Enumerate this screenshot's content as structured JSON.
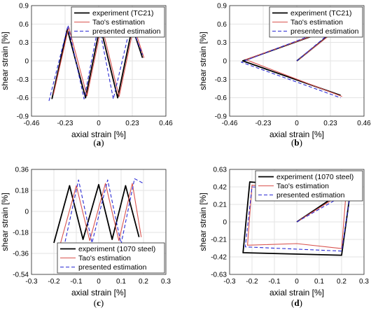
{
  "chart_data": [
    {
      "type": "line",
      "caption": "a",
      "xlabel": "axial strain [%]",
      "ylabel": "shear strain [%]",
      "xlim": [
        -0.46,
        0.46
      ],
      "ylim": [
        -0.9,
        0.9
      ],
      "xticks": [
        "-0.46",
        "-0.23",
        "0",
        "0.23",
        "0.46"
      ],
      "yticks": [
        "-0.9",
        "-0.6",
        "-0.3",
        "0",
        "0.3",
        "0.6",
        "0.9"
      ],
      "grid": true,
      "legend_position": "top-right",
      "series": [
        {
          "name": "experiment (TC21)",
          "color": "#000000",
          "style": "solid",
          "x": [
            -0.32,
            -0.215,
            -0.09,
            0.01,
            0.13,
            0.23,
            0.3
          ],
          "y": [
            -0.62,
            0.52,
            -0.6,
            0.57,
            -0.6,
            0.55,
            0.05
          ]
        },
        {
          "name": "Tao's estimation",
          "color": "#d9534f",
          "style": "solid",
          "x": [
            -0.31,
            -0.205,
            -0.08,
            0.02,
            0.14,
            0.24,
            0.31
          ],
          "y": [
            -0.55,
            0.55,
            -0.57,
            0.58,
            -0.58,
            0.56,
            0.05
          ]
        },
        {
          "name": "presented estimation",
          "color": "#2a2ad4",
          "style": "dashed",
          "x": [
            -0.34,
            -0.21,
            -0.1,
            0.0,
            0.1,
            0.22,
            0.3
          ],
          "y": [
            -0.65,
            0.58,
            -0.62,
            0.6,
            -0.62,
            0.6,
            0.1
          ]
        }
      ]
    },
    {
      "type": "line",
      "caption": "b",
      "xlabel": "axial strain [%]",
      "ylabel": "shear strain [%]",
      "xlim": [
        -0.46,
        0.46
      ],
      "ylim": [
        -0.9,
        0.9
      ],
      "xticks": [
        "-0.46",
        "-0.23",
        "0",
        "0.23",
        "0.46"
      ],
      "yticks": [
        "-0.9",
        "-0.6",
        "-0.3",
        "0",
        "0.3",
        "0.6",
        "0.9"
      ],
      "grid": true,
      "legend_position": "top-right",
      "series": [
        {
          "name": "experiment (TC21)",
          "color": "#000000",
          "style": "solid",
          "x": [
            0.0,
            0.3,
            -0.37,
            0.3
          ],
          "y": [
            0.0,
            0.57,
            0.0,
            -0.56
          ]
        },
        {
          "name": "Tao's estimation",
          "color": "#d9534f",
          "style": "solid",
          "x": [
            0.0,
            0.31,
            -0.35,
            0.31
          ],
          "y": [
            0.0,
            0.58,
            0.02,
            -0.58
          ]
        },
        {
          "name": "presented estimation",
          "color": "#2a2ad4",
          "style": "dashed",
          "x": [
            0.0,
            0.3,
            -0.38,
            0.3
          ],
          "y": [
            0.0,
            0.6,
            -0.02,
            -0.6
          ]
        }
      ]
    },
    {
      "type": "line",
      "caption": "c",
      "xlabel": "axial strain [%]",
      "ylabel": "shear strain [%]",
      "xlim": [
        -0.3,
        0.3
      ],
      "ylim": [
        -0.54,
        0.36
      ],
      "xticks": [
        "-0.3",
        "-0.2",
        "-0.1",
        "0",
        "0.1",
        "0.2",
        "0.3"
      ],
      "yticks": [
        "-0.54",
        "-0.36",
        "-0.18",
        "0",
        "0.18",
        "0.36"
      ],
      "grid": true,
      "legend_position": "bottom-right",
      "series": [
        {
          "name": "experiment (1070 steel)",
          "color": "#000000",
          "style": "solid",
          "x": [
            -0.2,
            -0.13,
            -0.07,
            0.0,
            0.06,
            0.12,
            0.18
          ],
          "y": [
            -0.27,
            0.22,
            -0.24,
            0.23,
            -0.24,
            0.22,
            -0.22
          ]
        },
        {
          "name": "Tao's estimation",
          "color": "#d9534f",
          "style": "solid",
          "x": [
            -0.17,
            -0.1,
            -0.04,
            0.03,
            0.09,
            0.15,
            0.19
          ],
          "y": [
            -0.27,
            0.22,
            -0.25,
            0.24,
            -0.25,
            0.24,
            -0.22
          ]
        },
        {
          "name": "presented estimation",
          "color": "#2a2ad4",
          "style": "dashed",
          "x": [
            -0.15,
            -0.09,
            -0.03,
            0.04,
            0.1,
            0.16,
            0.2
          ],
          "y": [
            -0.26,
            0.27,
            -0.27,
            0.27,
            -0.28,
            0.28,
            0.24
          ]
        }
      ]
    },
    {
      "type": "line",
      "caption": "d",
      "xlabel": "axial strain [%]",
      "ylabel": "shear strain [%]",
      "xlim": [
        -0.3,
        0.3
      ],
      "ylim": [
        -0.63,
        0.63
      ],
      "xticks": [
        "-0.3",
        "-0.2",
        "-0.1",
        "0",
        "0.1",
        "0.2",
        "0.3"
      ],
      "yticks": [
        "-0.63",
        "-0.42",
        "-0.21",
        "0",
        "0.21",
        "0.42",
        "0.63"
      ],
      "grid": true,
      "legend_position": "top-right",
      "series": [
        {
          "name": "experiment (1070 steel)",
          "color": "#000000",
          "style": "solid",
          "x": [
            0.0,
            0.2,
            0.24,
            -0.21,
            -0.24,
            0.2,
            0.24
          ],
          "y": [
            0.0,
            0.36,
            0.38,
            0.48,
            -0.37,
            -0.4,
            0.38
          ]
        },
        {
          "name": "Tao's estimation",
          "color": "#d9534f",
          "style": "solid",
          "x": [
            0.0,
            0.22,
            0.23,
            -0.2,
            -0.22,
            0.0,
            0.2,
            0.22
          ],
          "y": [
            0.0,
            0.37,
            0.35,
            0.44,
            -0.28,
            -0.26,
            -0.32,
            0.35
          ]
        },
        {
          "name": "presented estimation",
          "color": "#2a2ad4",
          "style": "dashed",
          "x": [
            0.0,
            0.23,
            0.24,
            -0.2,
            -0.23,
            0.2,
            0.24
          ],
          "y": [
            0.0,
            0.35,
            0.36,
            0.42,
            -0.3,
            -0.35,
            0.36
          ]
        }
      ]
    }
  ]
}
